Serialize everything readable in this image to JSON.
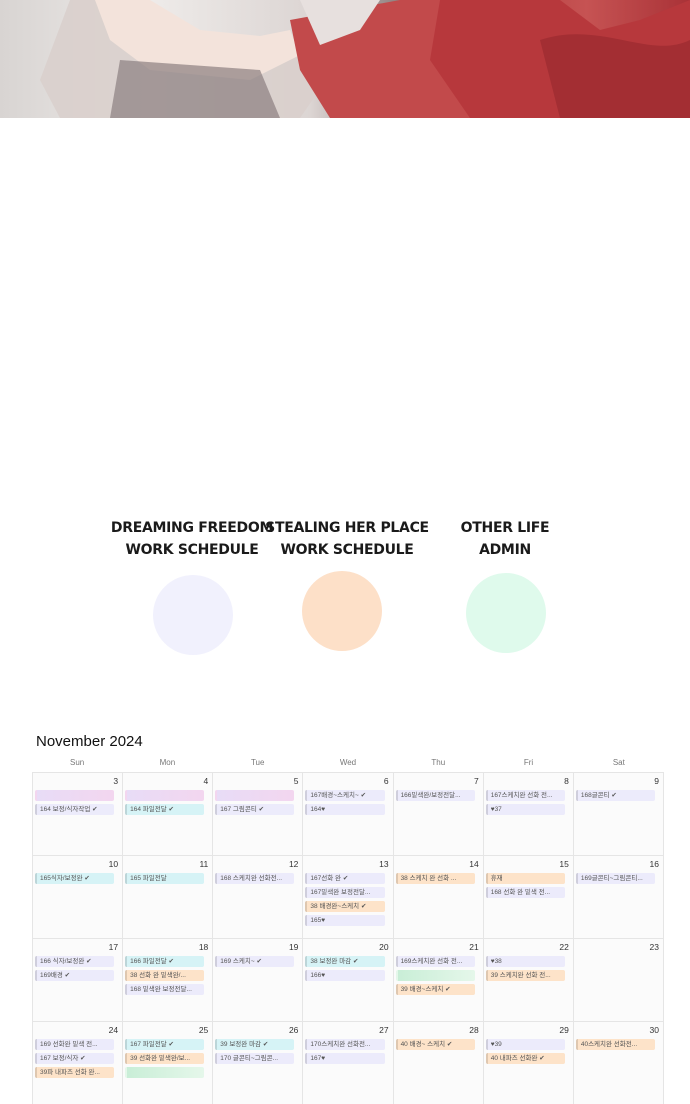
{
  "legend": [
    {
      "title": "DREAMING FREEDOM\nWORK SCHEDULE",
      "color": "#f1f1fd"
    },
    {
      "title": "STEALING HER PLACE\nWORK SCHEDULE",
      "color": "#fde0c8"
    },
    {
      "title": "OTHER LIFE\nADMIN",
      "color": "#dffaec"
    }
  ],
  "calendar": {
    "title": "November 2024",
    "weekdays": [
      "Sun",
      "Mon",
      "Tue",
      "Wed",
      "Thu",
      "Fri",
      "Sat"
    ],
    "weeks": [
      [
        {
          "day": "3",
          "events": [
            {
              "t": "",
              "c": "blur"
            },
            {
              "t": "164 보정/식자작업 ✔",
              "c": "p"
            }
          ]
        },
        {
          "day": "4",
          "events": [
            {
              "t": "",
              "c": "blur"
            },
            {
              "t": "164 파일전달 ✔",
              "c": "c"
            }
          ]
        },
        {
          "day": "5",
          "events": [
            {
              "t": "",
              "c": "blur"
            },
            {
              "t": "167 그림콘티 ✔",
              "c": "p"
            }
          ]
        },
        {
          "day": "6",
          "events": [
            {
              "t": "167배경~스케치~ ✔",
              "c": "p"
            },
            {
              "t": "164♥",
              "c": "p"
            }
          ]
        },
        {
          "day": "7",
          "events": [
            {
              "t": "166밑색완/보정전달...",
              "c": "p"
            }
          ]
        },
        {
          "day": "8",
          "events": [
            {
              "t": "167스케치완 선화 전...",
              "c": "p"
            },
            {
              "t": "♥37",
              "c": "p"
            }
          ]
        },
        {
          "day": "9",
          "events": [
            {
              "t": "168글콘티 ✔",
              "c": "p"
            }
          ]
        }
      ],
      [
        {
          "day": "10",
          "events": [
            {
              "t": "165식자/보정완 ✔",
              "c": "c"
            }
          ]
        },
        {
          "day": "11",
          "events": [
            {
              "t": "165 파일전달",
              "c": "c"
            }
          ]
        },
        {
          "day": "12",
          "events": [
            {
              "t": "168 스케치완 선화전...",
              "c": "p"
            }
          ]
        },
        {
          "day": "13",
          "events": [
            {
              "t": "167선화 완 ✔",
              "c": "p"
            },
            {
              "t": "167밑색완 보정전달...",
              "c": "p"
            },
            {
              "t": "38 배경완~스케치 ✔",
              "c": "o"
            },
            {
              "t": "165♥",
              "c": "p"
            }
          ]
        },
        {
          "day": "14",
          "events": [
            {
              "t": "38 스케치 완 선화 ...",
              "c": "o"
            }
          ]
        },
        {
          "day": "15",
          "events": [
            {
              "t": "휴재",
              "c": "o"
            },
            {
              "t": "168 선화 완 밑색 전...",
              "c": "p"
            }
          ]
        },
        {
          "day": "16",
          "events": [
            {
              "t": "169글콘티~그림콘티...",
              "c": "p"
            }
          ]
        }
      ],
      [
        {
          "day": "17",
          "events": [
            {
              "t": "166 식자/보정완 ✔",
              "c": "p"
            },
            {
              "t": "169배경 ✔",
              "c": "p"
            }
          ]
        },
        {
          "day": "18",
          "events": [
            {
              "t": "166 파일전달 ✔",
              "c": "c"
            },
            {
              "t": "38 선화 완 밑색완/...",
              "c": "o"
            },
            {
              "t": "168 밑색완 보정전달...",
              "c": "p"
            }
          ]
        },
        {
          "day": "19",
          "events": [
            {
              "t": "169 스케치~ ✔",
              "c": "p"
            }
          ]
        },
        {
          "day": "20",
          "events": [
            {
              "t": "38 보정완 마감 ✔",
              "c": "c"
            },
            {
              "t": "166♥",
              "c": "p"
            }
          ]
        },
        {
          "day": "21",
          "events": [
            {
              "t": "169스케치완 선화 전...",
              "c": "p"
            },
            {
              "t": "",
              "c": "blurg"
            },
            {
              "t": "39 배경~스케치 ✔",
              "c": "o"
            }
          ]
        },
        {
          "day": "22",
          "events": [
            {
              "t": "♥38",
              "c": "p"
            },
            {
              "t": "39 스케치완 선화 전...",
              "c": "o"
            }
          ]
        },
        {
          "day": "23",
          "events": []
        }
      ],
      [
        {
          "day": "24",
          "events": [
            {
              "t": "169 선화완 밑색 전...",
              "c": "p"
            },
            {
              "t": "167 보정/식자 ✔",
              "c": "p"
            },
            {
              "t": "39파 내파즈 선화 완...",
              "c": "o"
            }
          ]
        },
        {
          "day": "25",
          "events": [
            {
              "t": "167 파일전달 ✔",
              "c": "c"
            },
            {
              "t": "39 선화완 밑색완/보...",
              "c": "o"
            },
            {
              "t": "",
              "c": "blurg"
            }
          ]
        },
        {
          "day": "26",
          "events": [
            {
              "t": "39 보정완 마감 ✔",
              "c": "c"
            },
            {
              "t": "170 글콘티~그림콘...",
              "c": "p"
            }
          ]
        },
        {
          "day": "27",
          "events": [
            {
              "t": "170스케치완 선화전...",
              "c": "p"
            },
            {
              "t": "167♥",
              "c": "p"
            }
          ]
        },
        {
          "day": "28",
          "events": [
            {
              "t": "40 배경~ 스케치 ✔",
              "c": "o"
            }
          ]
        },
        {
          "day": "29",
          "events": [
            {
              "t": "♥39",
              "c": "p"
            },
            {
              "t": "40 내파즈 선화완 ✔",
              "c": "o"
            }
          ]
        },
        {
          "day": "30",
          "events": [
            {
              "t": "40스케치완 선화전...",
              "c": "o"
            }
          ]
        }
      ]
    ]
  }
}
